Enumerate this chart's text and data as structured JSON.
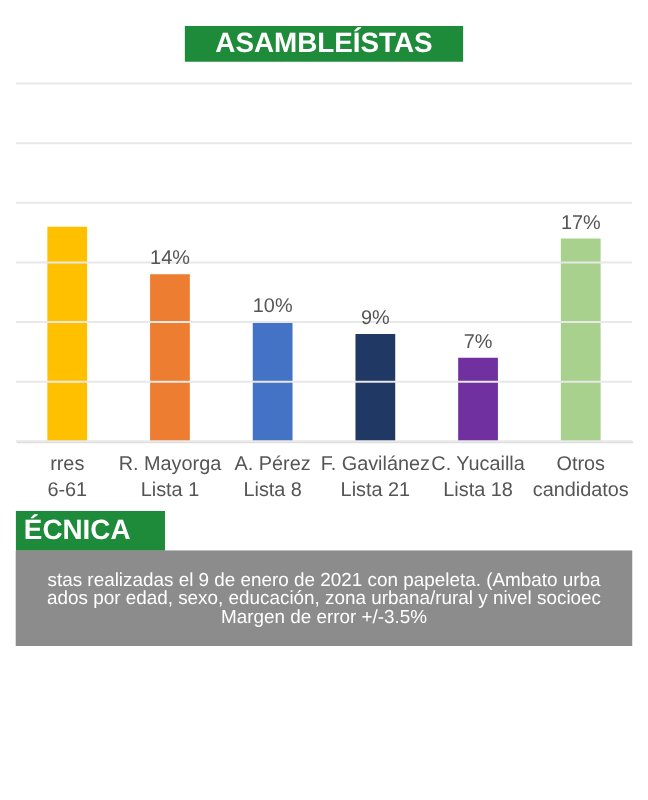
{
  "chart_data": {
    "type": "bar",
    "title": "ASAMBLEÍSTAS",
    "categories": [
      "rres\n6-61",
      "R. Mayorga\nLista 1",
      "A. Pérez\nLista 8",
      "F. Gavilánez\nLista 21",
      "C. Yucailla\nLista 18",
      "Otros\ncandidatos"
    ],
    "values": [
      18,
      14,
      10,
      9,
      7,
      17
    ],
    "value_labels": [
      null,
      "14%",
      "10%",
      "9%",
      "7%",
      "17%"
    ],
    "colors": [
      "#ffc000",
      "#ed7d31",
      "#4472c4",
      "#203864",
      "#7030a0",
      "#a9d18e"
    ],
    "ylim": [
      0,
      30
    ],
    "yticks": [
      {
        "value": 0,
        "label": null
      },
      {
        "value": 5,
        "label": null
      },
      {
        "value": 10,
        "label": null
      },
      {
        "value": 15,
        "label": null
      },
      {
        "value": 20,
        "label": null
      },
      {
        "value": 25,
        "label": null
      },
      {
        "value": 30,
        "label": null
      }
    ],
    "grid": "y",
    "tick_labels": "x",
    "annotations": [
      "ÉCNICA",
      "stas realizadas el 9 de enero de 2021 con papeleta. (Ambato urba",
      "ados por edad, sexo, educación, zona urbana/rural y nivel socioec",
      "Margen de error +/-3.5%"
    ]
  }
}
